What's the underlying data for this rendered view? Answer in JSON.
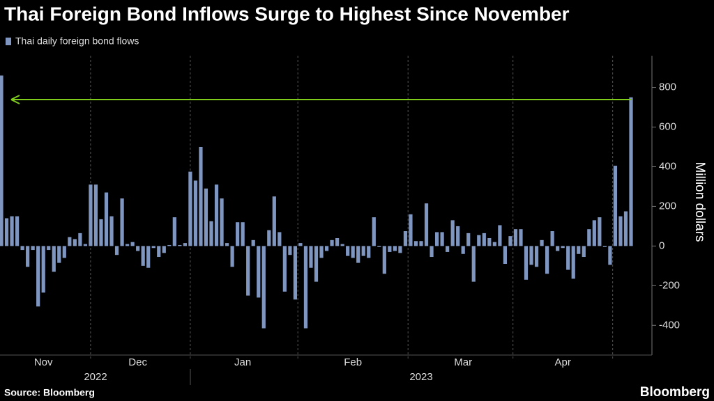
{
  "chart_data": {
    "type": "bar",
    "title": "Thai Foreign Bond Inflows Surge to Highest Since November",
    "y_label": "Million dollars",
    "source": "Source: Bloomberg",
    "brand": "Bloomberg",
    "series": [
      {
        "name": "Thai daily foreign bond flows",
        "color": "#7f96c0",
        "values": [
          860,
          140,
          150,
          150,
          -20,
          -105,
          -20,
          -305,
          -235,
          -20,
          -130,
          -85,
          -60,
          45,
          35,
          65,
          10,
          310,
          310,
          135,
          270,
          150,
          -45,
          240,
          10,
          20,
          -25,
          -100,
          -110,
          -10,
          -55,
          -35,
          5,
          145,
          5,
          15,
          375,
          330,
          500,
          290,
          125,
          310,
          240,
          15,
          -105,
          120,
          120,
          -250,
          30,
          -260,
          -415,
          80,
          250,
          70,
          -230,
          -45,
          -270,
          15,
          -415,
          -110,
          -180,
          -60,
          -25,
          30,
          40,
          10,
          -50,
          -60,
          -85,
          -50,
          -60,
          145,
          -5,
          -140,
          -30,
          -25,
          -35,
          75,
          160,
          25,
          25,
          215,
          -55,
          70,
          70,
          -30,
          130,
          100,
          -40,
          65,
          -180,
          55,
          65,
          40,
          20,
          105,
          -90,
          50,
          85,
          85,
          -170,
          -95,
          -105,
          30,
          -140,
          75,
          -25,
          -10,
          -120,
          -165,
          -40,
          -55,
          85,
          130,
          145,
          -5,
          -95,
          405,
          150,
          175,
          750
        ]
      }
    ],
    "categories": [
      null,
      null,
      null,
      null,
      null,
      null,
      null,
      null,
      "Nov",
      null,
      null,
      null,
      null,
      null,
      null,
      null,
      null,
      null,
      null,
      null,
      null,
      null,
      null,
      null,
      null,
      null,
      "Dec",
      null,
      null,
      null,
      null,
      null,
      null,
      null,
      null,
      null,
      null,
      null,
      null,
      null,
      null,
      null,
      null,
      null,
      null,
      null,
      "Jan",
      null,
      null,
      null,
      null,
      null,
      null,
      null,
      null,
      null,
      null,
      null,
      null,
      null,
      null,
      null,
      null,
      null,
      null,
      null,
      null,
      "Feb",
      null,
      null,
      null,
      null,
      null,
      null,
      null,
      null,
      null,
      null,
      null,
      null,
      null,
      null,
      null,
      null,
      null,
      null,
      null,
      null,
      "Mar",
      null,
      null,
      null,
      null,
      null,
      null,
      null,
      null,
      null,
      null,
      null,
      null,
      null,
      null,
      null,
      null,
      null,
      null,
      "Apr",
      null,
      null,
      null,
      null,
      null,
      null,
      null,
      null,
      null,
      null,
      null,
      null,
      null
    ],
    "year_labels": [
      "2022",
      "2023"
    ],
    "ylim": [
      -550,
      960
    ],
    "yticks": [
      -400,
      -200,
      0,
      200,
      400,
      600,
      800
    ],
    "grid": false
  }
}
